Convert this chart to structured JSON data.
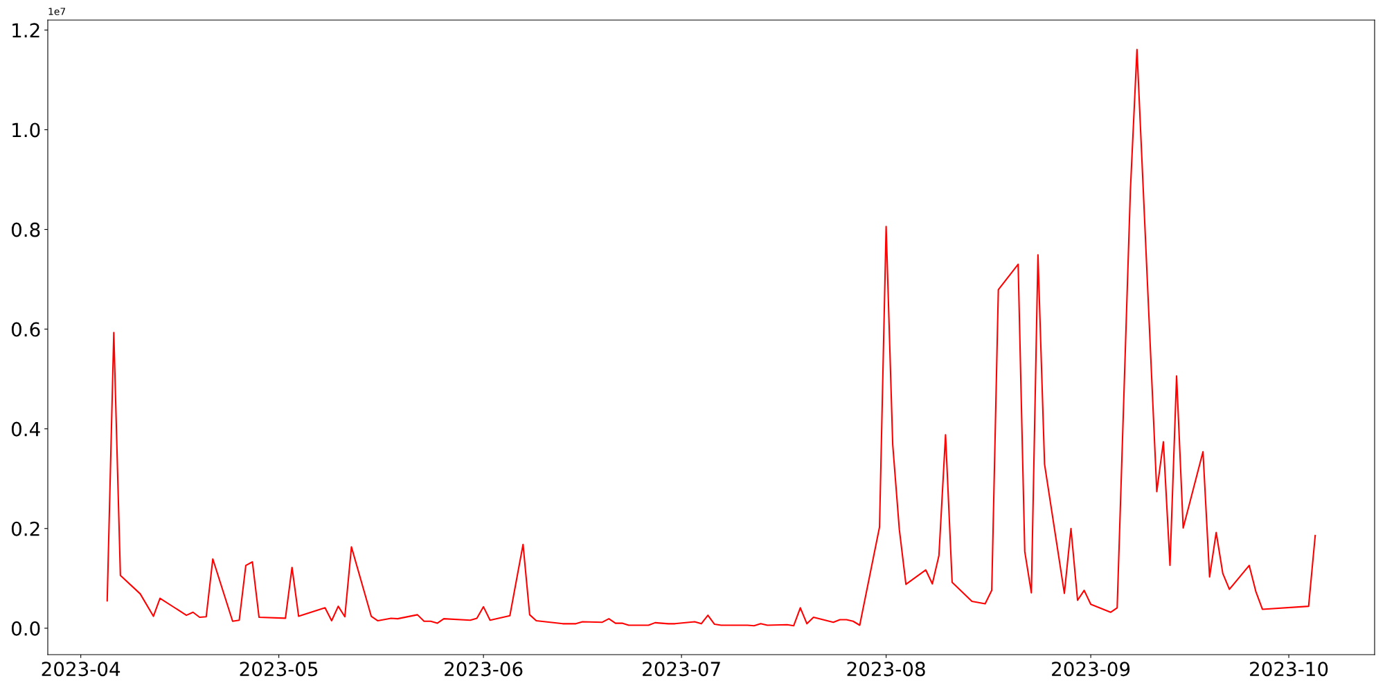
{
  "chart_data": {
    "type": "line",
    "x": [
      "2023-04-05",
      "2023-04-06",
      "2023-04-07",
      "2023-04-10",
      "2023-04-12",
      "2023-04-13",
      "2023-04-17",
      "2023-04-18",
      "2023-04-19",
      "2023-04-20",
      "2023-04-21",
      "2023-04-24",
      "2023-04-25",
      "2023-04-26",
      "2023-04-27",
      "2023-04-28",
      "2023-05-02",
      "2023-05-03",
      "2023-05-04",
      "2023-05-08",
      "2023-05-09",
      "2023-05-10",
      "2023-05-11",
      "2023-05-12",
      "2023-05-15",
      "2023-05-16",
      "2023-05-18",
      "2023-05-19",
      "2023-05-22",
      "2023-05-23",
      "2023-05-24",
      "2023-05-25",
      "2023-05-26",
      "2023-05-30",
      "2023-05-31",
      "2023-06-01",
      "2023-06-02",
      "2023-06-05",
      "2023-06-07",
      "2023-06-08",
      "2023-06-09",
      "2023-06-13",
      "2023-06-15",
      "2023-06-16",
      "2023-06-19",
      "2023-06-20",
      "2023-06-21",
      "2023-06-22",
      "2023-06-23",
      "2023-06-26",
      "2023-06-27",
      "2023-06-28",
      "2023-06-29",
      "2023-06-30",
      "2023-07-03",
      "2023-07-04",
      "2023-07-05",
      "2023-07-06",
      "2023-07-07",
      "2023-07-10",
      "2023-07-11",
      "2023-07-12",
      "2023-07-13",
      "2023-07-14",
      "2023-07-17",
      "2023-07-18",
      "2023-07-19",
      "2023-07-20",
      "2023-07-21",
      "2023-07-24",
      "2023-07-25",
      "2023-07-26",
      "2023-07-27",
      "2023-07-28",
      "2023-07-31",
      "2023-08-01",
      "2023-08-02",
      "2023-08-03",
      "2023-08-04",
      "2023-08-07",
      "2023-08-08",
      "2023-08-09",
      "2023-08-10",
      "2023-08-11",
      "2023-08-14",
      "2023-08-16",
      "2023-08-17",
      "2023-08-18",
      "2023-08-21",
      "2023-08-22",
      "2023-08-23",
      "2023-08-24",
      "2023-08-25",
      "2023-08-28",
      "2023-08-29",
      "2023-08-30",
      "2023-08-31",
      "2023-09-01",
      "2023-09-04",
      "2023-09-05",
      "2023-09-07",
      "2023-09-08",
      "2023-09-11",
      "2023-09-12",
      "2023-09-13",
      "2023-09-14",
      "2023-09-15",
      "2023-09-18",
      "2023-09-19",
      "2023-09-20",
      "2023-09-21",
      "2023-09-22",
      "2023-09-25",
      "2023-09-26",
      "2023-09-27",
      "2023-10-04",
      "2023-10-05"
    ],
    "series": [
      {
        "color": "#ff0000",
        "values": [
          0.055,
          0.593,
          0.106,
          0.069,
          0.024,
          0.06,
          0.026,
          0.032,
          0.022,
          0.023,
          0.139,
          0.014,
          0.016,
          0.126,
          0.133,
          0.022,
          0.02,
          0.122,
          0.024,
          0.041,
          0.015,
          0.044,
          0.023,
          0.163,
          0.024,
          0.015,
          0.02,
          0.019,
          0.027,
          0.014,
          0.014,
          0.01,
          0.019,
          0.016,
          0.02,
          0.043,
          0.016,
          0.025,
          0.168,
          0.027,
          0.015,
          0.009,
          0.009,
          0.013,
          0.012,
          0.019,
          0.01,
          0.01,
          0.006,
          0.006,
          0.011,
          0.01,
          0.009,
          0.009,
          0.013,
          0.009,
          0.026,
          0.008,
          0.006,
          0.006,
          0.006,
          0.005,
          0.009,
          0.006,
          0.007,
          0.005,
          0.041,
          0.009,
          0.022,
          0.012,
          0.017,
          0.017,
          0.014,
          0.006,
          0.203,
          0.806,
          0.368,
          0.198,
          0.088,
          0.117,
          0.089,
          0.146,
          0.388,
          0.092,
          0.054,
          0.049,
          0.076,
          0.679,
          0.73,
          0.154,
          0.071,
          0.749,
          0.329,
          0.07,
          0.2,
          0.056,
          0.076,
          0.048,
          0.032,
          0.041,
          0.878,
          1.161,
          0.274,
          0.374,
          0.126,
          0.506,
          0.201,
          0.354,
          0.103,
          0.192,
          0.11,
          0.078,
          0.126,
          0.074,
          0.038,
          0.044,
          0.186
        ]
      }
    ],
    "xlim": [
      "2023-03-27",
      "2023-10-14"
    ],
    "xticks": [
      {
        "value": "2023-04-01",
        "label": "2023-04"
      },
      {
        "value": "2023-05-01",
        "label": "2023-05"
      },
      {
        "value": "2023-06-01",
        "label": "2023-06"
      },
      {
        "value": "2023-07-01",
        "label": "2023-07"
      },
      {
        "value": "2023-08-01",
        "label": "2023-08"
      },
      {
        "value": "2023-09-01",
        "label": "2023-09"
      },
      {
        "value": "2023-10-01",
        "label": "2023-10"
      }
    ],
    "ylim": [
      -0.053,
      1.22
    ],
    "yticks": [
      {
        "value": 0,
        "label": "0.0"
      },
      0.2,
      0.4,
      0.6,
      0.8,
      {
        "value": 1,
        "label": "1.0"
      },
      1.2
    ],
    "annotations": [
      "1e7"
    ],
    "grid": false,
    "marker": "none",
    "line_style": "solid"
  }
}
